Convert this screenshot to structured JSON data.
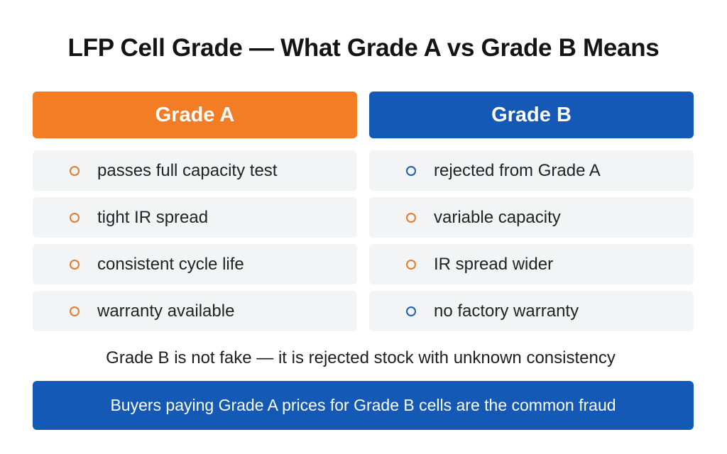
{
  "title": "LFP Cell Grade — What Grade A vs Grade B Means",
  "colors": {
    "grade_a_accent": "#f27d24",
    "grade_b_accent": "#1559b6",
    "row_background": "#f3f4f6"
  },
  "grade_a": {
    "header": "Grade A",
    "items": [
      {
        "text": "passes full capacity test",
        "bullet_color": "orange"
      },
      {
        "text": "tight IR spread",
        "bullet_color": "orange"
      },
      {
        "text": "consistent cycle life",
        "bullet_color": "orange"
      },
      {
        "text": "warranty available",
        "bullet_color": "orange"
      }
    ]
  },
  "grade_b": {
    "header": "Grade B",
    "items": [
      {
        "text": "rejected from Grade A",
        "bullet_color": "blue"
      },
      {
        "text": "variable capacity",
        "bullet_color": "orange"
      },
      {
        "text": "IR spread wider",
        "bullet_color": "orange"
      },
      {
        "text": "no factory warranty",
        "bullet_color": "blue"
      }
    ]
  },
  "note": "Grade B is not fake — it is rejected stock with unknown consistency",
  "banner": "Buyers paying Grade A prices for Grade B cells are the common fraud"
}
